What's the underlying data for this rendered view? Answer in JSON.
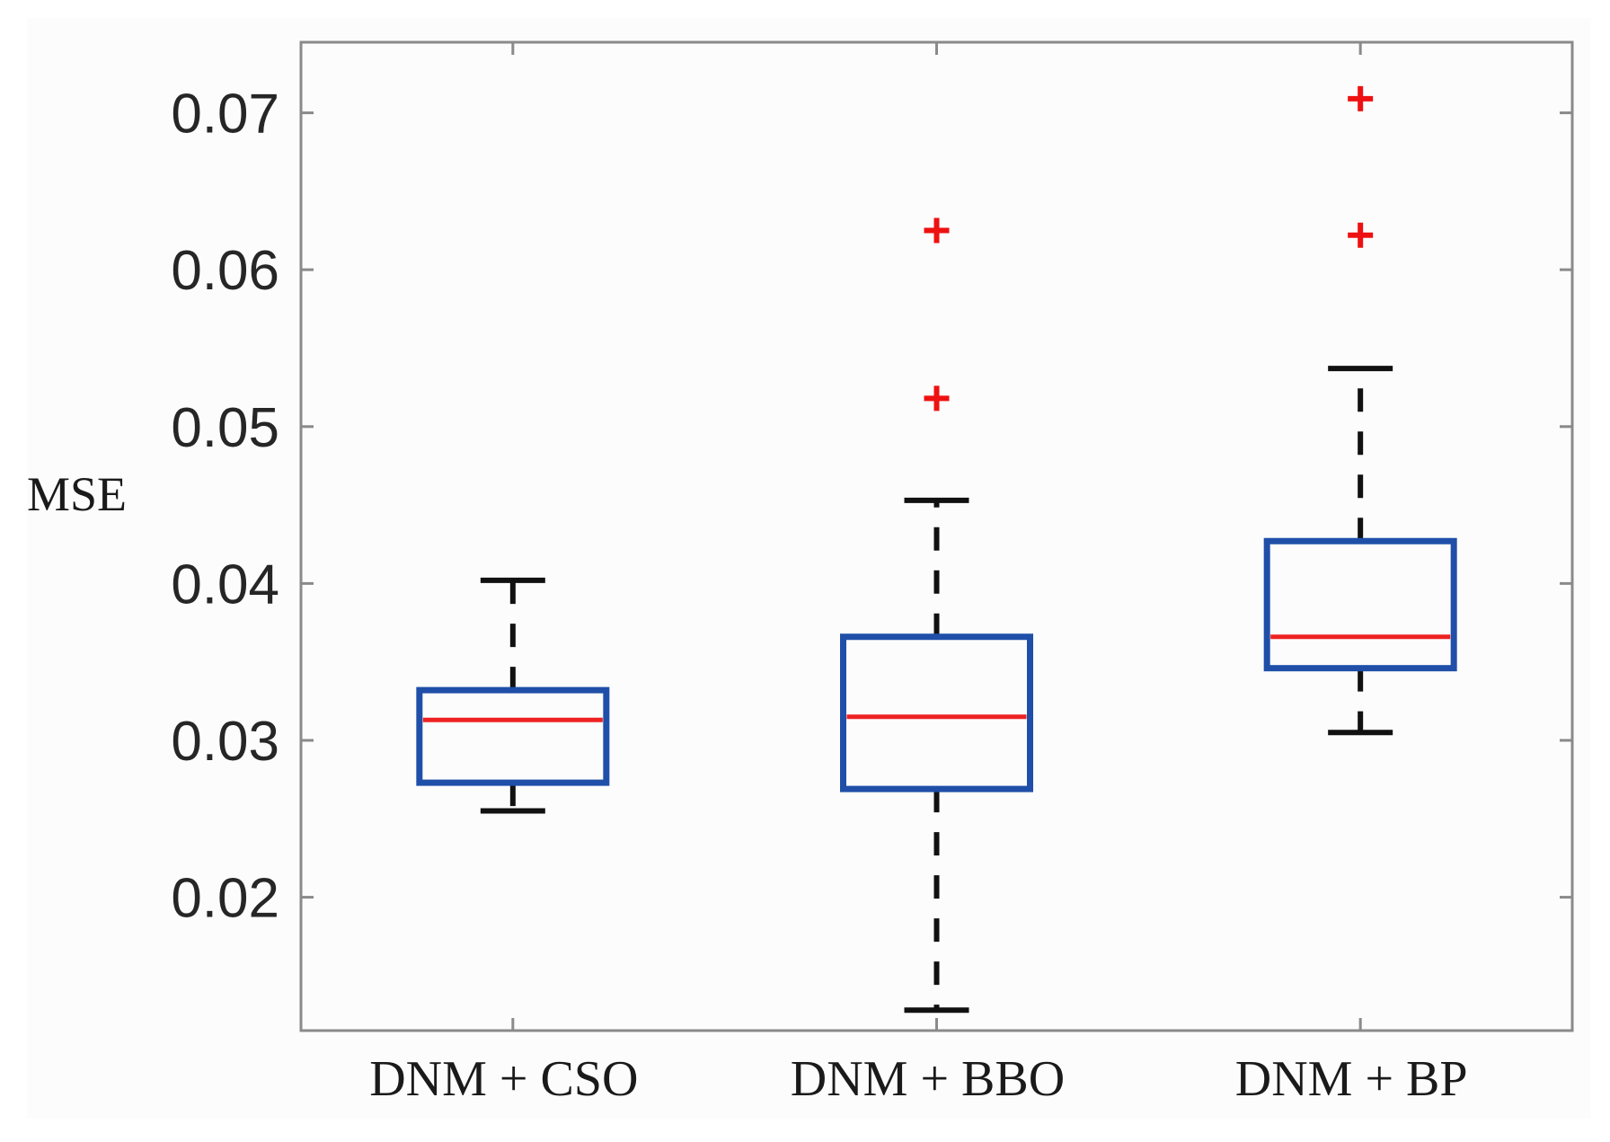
{
  "chart_data": {
    "type": "boxplot",
    "title": "",
    "xlabel": "",
    "ylabel": "MSE",
    "ylim": [
      0.0115,
      0.0745
    ],
    "yticks": [
      0.02,
      0.03,
      0.04,
      0.05,
      0.06,
      0.07
    ],
    "ytick_labels": [
      "0.02",
      "0.03",
      "0.04",
      "0.05",
      "0.06",
      "0.07"
    ],
    "categories": [
      "DNM + CSO",
      "DNM + BBO",
      "DNM + BP"
    ],
    "boxes": [
      {
        "name": "DNM + CSO",
        "whisker_low": 0.0255,
        "q1": 0.0273,
        "median": 0.0313,
        "q3": 0.0332,
        "whisker_high": 0.0402,
        "outliers": []
      },
      {
        "name": "DNM + BBO",
        "whisker_low": 0.0128,
        "q1": 0.0269,
        "median": 0.0315,
        "q3": 0.0366,
        "whisker_high": 0.0453,
        "outliers": [
          0.0518,
          0.0625
        ]
      },
      {
        "name": "DNM + BP",
        "whisker_low": 0.0305,
        "q1": 0.0346,
        "median": 0.0366,
        "q3": 0.0427,
        "whisker_high": 0.0537,
        "outliers": [
          0.0622,
          0.0709
        ]
      }
    ],
    "colors": {
      "box": "#1f4fa8",
      "median": "#ee2222",
      "whisker": "#111111",
      "outlier": "#ee1111",
      "axis": "#8a8a8a"
    },
    "grid": false
  }
}
